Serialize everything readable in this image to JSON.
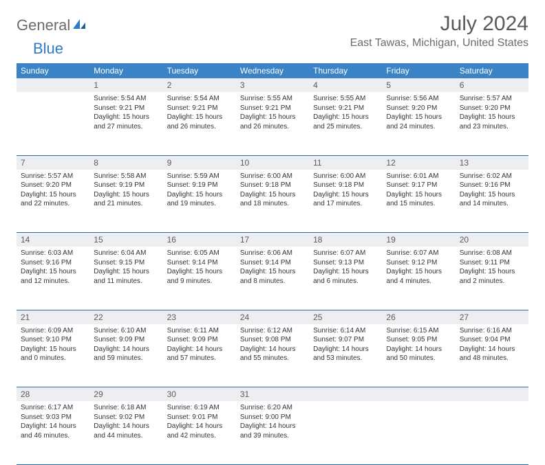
{
  "logo": {
    "part1": "General",
    "part2": "Blue"
  },
  "title": "July 2024",
  "location": "East Tawas, Michigan, United States",
  "colors": {
    "header_bg": "#3a84c6",
    "header_text": "#ffffff",
    "daynum_bg": "#eceef1",
    "rule": "#2d6aa5",
    "logo_gray": "#6b6b6b",
    "logo_blue": "#2f7bc4"
  },
  "weekdays": [
    "Sunday",
    "Monday",
    "Tuesday",
    "Wednesday",
    "Thursday",
    "Friday",
    "Saturday"
  ],
  "first_weekday_index": 1,
  "days": [
    {
      "n": 1,
      "sr": "5:54 AM",
      "ss": "9:21 PM",
      "dl": "15 hours and 27 minutes."
    },
    {
      "n": 2,
      "sr": "5:54 AM",
      "ss": "9:21 PM",
      "dl": "15 hours and 26 minutes."
    },
    {
      "n": 3,
      "sr": "5:55 AM",
      "ss": "9:21 PM",
      "dl": "15 hours and 26 minutes."
    },
    {
      "n": 4,
      "sr": "5:55 AM",
      "ss": "9:21 PM",
      "dl": "15 hours and 25 minutes."
    },
    {
      "n": 5,
      "sr": "5:56 AM",
      "ss": "9:20 PM",
      "dl": "15 hours and 24 minutes."
    },
    {
      "n": 6,
      "sr": "5:57 AM",
      "ss": "9:20 PM",
      "dl": "15 hours and 23 minutes."
    },
    {
      "n": 7,
      "sr": "5:57 AM",
      "ss": "9:20 PM",
      "dl": "15 hours and 22 minutes."
    },
    {
      "n": 8,
      "sr": "5:58 AM",
      "ss": "9:19 PM",
      "dl": "15 hours and 21 minutes."
    },
    {
      "n": 9,
      "sr": "5:59 AM",
      "ss": "9:19 PM",
      "dl": "15 hours and 19 minutes."
    },
    {
      "n": 10,
      "sr": "6:00 AM",
      "ss": "9:18 PM",
      "dl": "15 hours and 18 minutes."
    },
    {
      "n": 11,
      "sr": "6:00 AM",
      "ss": "9:18 PM",
      "dl": "15 hours and 17 minutes."
    },
    {
      "n": 12,
      "sr": "6:01 AM",
      "ss": "9:17 PM",
      "dl": "15 hours and 15 minutes."
    },
    {
      "n": 13,
      "sr": "6:02 AM",
      "ss": "9:16 PM",
      "dl": "15 hours and 14 minutes."
    },
    {
      "n": 14,
      "sr": "6:03 AM",
      "ss": "9:16 PM",
      "dl": "15 hours and 12 minutes."
    },
    {
      "n": 15,
      "sr": "6:04 AM",
      "ss": "9:15 PM",
      "dl": "15 hours and 11 minutes."
    },
    {
      "n": 16,
      "sr": "6:05 AM",
      "ss": "9:14 PM",
      "dl": "15 hours and 9 minutes."
    },
    {
      "n": 17,
      "sr": "6:06 AM",
      "ss": "9:14 PM",
      "dl": "15 hours and 8 minutes."
    },
    {
      "n": 18,
      "sr": "6:07 AM",
      "ss": "9:13 PM",
      "dl": "15 hours and 6 minutes."
    },
    {
      "n": 19,
      "sr": "6:07 AM",
      "ss": "9:12 PM",
      "dl": "15 hours and 4 minutes."
    },
    {
      "n": 20,
      "sr": "6:08 AM",
      "ss": "9:11 PM",
      "dl": "15 hours and 2 minutes."
    },
    {
      "n": 21,
      "sr": "6:09 AM",
      "ss": "9:10 PM",
      "dl": "15 hours and 0 minutes."
    },
    {
      "n": 22,
      "sr": "6:10 AM",
      "ss": "9:09 PM",
      "dl": "14 hours and 59 minutes."
    },
    {
      "n": 23,
      "sr": "6:11 AM",
      "ss": "9:09 PM",
      "dl": "14 hours and 57 minutes."
    },
    {
      "n": 24,
      "sr": "6:12 AM",
      "ss": "9:08 PM",
      "dl": "14 hours and 55 minutes."
    },
    {
      "n": 25,
      "sr": "6:14 AM",
      "ss": "9:07 PM",
      "dl": "14 hours and 53 minutes."
    },
    {
      "n": 26,
      "sr": "6:15 AM",
      "ss": "9:05 PM",
      "dl": "14 hours and 50 minutes."
    },
    {
      "n": 27,
      "sr": "6:16 AM",
      "ss": "9:04 PM",
      "dl": "14 hours and 48 minutes."
    },
    {
      "n": 28,
      "sr": "6:17 AM",
      "ss": "9:03 PM",
      "dl": "14 hours and 46 minutes."
    },
    {
      "n": 29,
      "sr": "6:18 AM",
      "ss": "9:02 PM",
      "dl": "14 hours and 44 minutes."
    },
    {
      "n": 30,
      "sr": "6:19 AM",
      "ss": "9:01 PM",
      "dl": "14 hours and 42 minutes."
    },
    {
      "n": 31,
      "sr": "6:20 AM",
      "ss": "9:00 PM",
      "dl": "14 hours and 39 minutes."
    }
  ],
  "labels": {
    "sunrise": "Sunrise:",
    "sunset": "Sunset:",
    "daylight": "Daylight:"
  }
}
